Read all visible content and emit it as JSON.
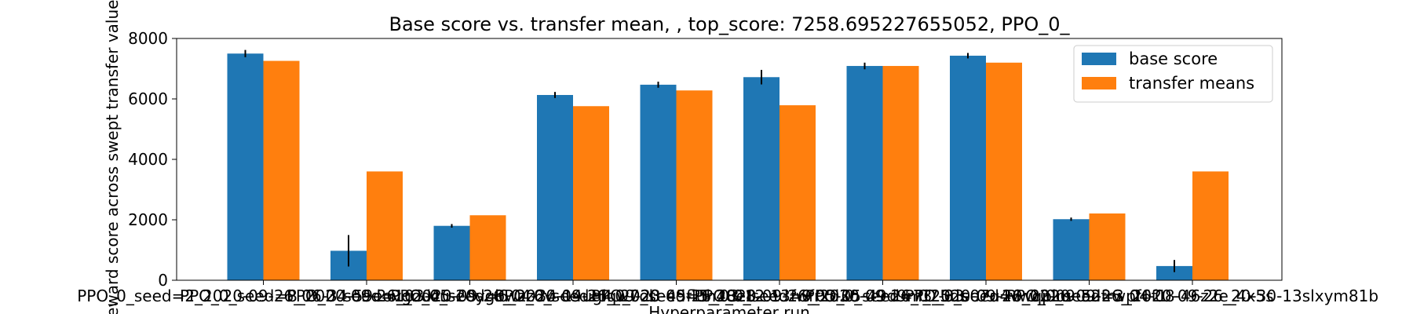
{
  "chart_data": {
    "type": "bar",
    "title": "Base score vs. transfer mean, , top_score: 7258.695227655052, PPO_0_",
    "xlabel": "Hyperparameter run",
    "ylabel": "Reward score across swept transfer values",
    "ylim": [
      0,
      8000
    ],
    "yticks": [
      0,
      2000,
      4000,
      6000,
      8000
    ],
    "grid": false,
    "legend_position": "upper right",
    "categories": [
      "PPO_0_seed=2_2020-09-26_06-34-59eovgodcu",
      "PPO_0_seed=8_2020-09-26_03-45-20ygbwzz6v",
      "PPO_0_seed=1_2020-09-26_04-34-14uglqw7ol",
      "PPO_0_seed=6_2020-09-26_09-23-45fluh48e8",
      "PPO_0_seed=4_2020-09-26_03-12-13fwfrxd3c",
      "PPO_0_seed=5_2020-09-26_05-05-49d9m3_5ds",
      "PPO_0_seed=9_2020-09-26_07-33-07u4vwqplm",
      "PPO_0_seed=7_2020-09-26_02-09-52frwpf6f1",
      "PPO_0_seed=0_2020-09-26_04-08-46z2e_4x5s",
      "PPO_0_seed=3_2020-09-26_20-30-13slxym81b"
    ],
    "series": [
      {
        "name": "base score",
        "color": "#1f77b4",
        "values": [
          7500,
          975,
          1800,
          6130,
          6470,
          6720,
          7090,
          7430,
          2020,
          470
        ],
        "errors": [
          120,
          520,
          60,
          100,
          100,
          240,
          110,
          90,
          55,
          200
        ]
      },
      {
        "name": "transfer means",
        "color": "#ff7f0e",
        "values": [
          7258.7,
          3600,
          2150,
          5760,
          6280,
          5790,
          7090,
          7200,
          2210,
          3600
        ]
      }
    ]
  }
}
